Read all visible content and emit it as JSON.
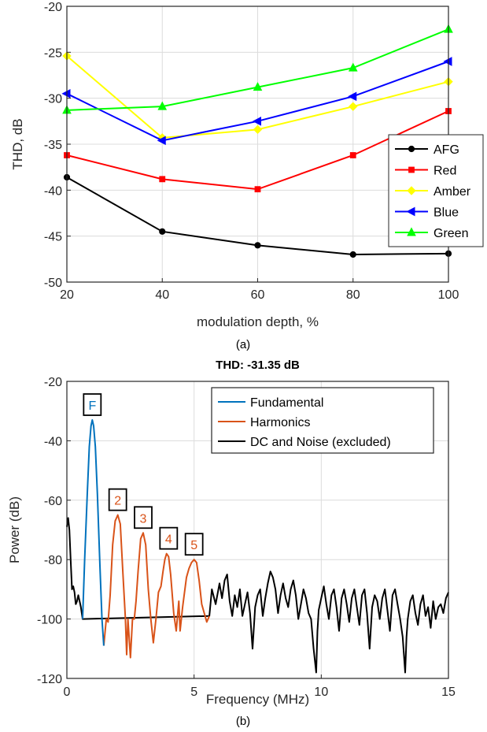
{
  "chart_data": [
    {
      "type": "line",
      "caption": "(a)",
      "xlabel": "modulation depth, %",
      "ylabel": "THD, dB",
      "xlim": [
        20,
        100
      ],
      "ylim": [
        -50,
        -20
      ],
      "xticks": [
        20,
        40,
        60,
        80,
        100
      ],
      "yticks": [
        -20,
        -25,
        -30,
        -35,
        -40,
        -45,
        -50
      ],
      "grid": true,
      "legend_position": "bottom-right",
      "x": [
        20,
        40,
        60,
        80,
        100
      ],
      "series": [
        {
          "name": "AFG",
          "color": "#000000",
          "marker": "circle",
          "values": [
            -38.6,
            -44.5,
            -46.0,
            -47.0,
            -46.9
          ]
        },
        {
          "name": "Red",
          "color": "#ff0000",
          "marker": "square",
          "values": [
            -36.2,
            -38.8,
            -39.9,
            -36.2,
            -31.4
          ]
        },
        {
          "name": "Amber",
          "color": "#ffff00",
          "marker": "diamond",
          "values": [
            -25.4,
            -34.3,
            -33.4,
            -30.9,
            -28.2
          ]
        },
        {
          "name": "Blue",
          "color": "#0000ff",
          "marker": "triangle-left",
          "values": [
            -29.5,
            -34.6,
            -32.5,
            -29.8,
            -26.0
          ]
        },
        {
          "name": "Green",
          "color": "#00ff00",
          "marker": "triangle-up",
          "values": [
            -31.3,
            -30.9,
            -28.8,
            -26.7,
            -22.5
          ]
        }
      ]
    },
    {
      "type": "line",
      "caption": "(b)",
      "title": "THD: -31.35 dB",
      "xlabel": "Frequency (MHz)",
      "ylabel": "Power (dB)",
      "xlim": [
        0,
        15
      ],
      "ylim": [
        -120,
        -20
      ],
      "xticks": [
        0,
        5,
        10,
        15
      ],
      "yticks": [
        -20,
        -40,
        -60,
        -80,
        -100,
        -120
      ],
      "grid": true,
      "legend_position": "top-right",
      "series": [
        {
          "name": "Fundamental",
          "color": "#0072bd",
          "x": [
            0.62,
            0.7,
            0.8,
            0.88,
            0.95,
            1.0,
            1.05,
            1.12,
            1.2,
            1.3,
            1.38,
            1.45
          ],
          "y": [
            -100,
            -80,
            -58,
            -42,
            -35,
            -33,
            -35,
            -42,
            -58,
            -82,
            -100,
            -109
          ]
        },
        {
          "name": "Harmonics",
          "color": "#d95319",
          "x": [
            1.45,
            1.55,
            1.62,
            1.7,
            1.8,
            1.9,
            2.0,
            2.1,
            2.2,
            2.3,
            2.35,
            2.4,
            2.5,
            2.58,
            2.65,
            2.72,
            2.8,
            2.9,
            3.0,
            3.1,
            3.2,
            3.3,
            3.4,
            3.5,
            3.6,
            3.7,
            3.78,
            3.85,
            3.92,
            4.0,
            4.08,
            4.2,
            4.3,
            4.4,
            4.45,
            4.55,
            4.7,
            4.8,
            4.9,
            5.0,
            5.1,
            5.2,
            5.3,
            5.4,
            5.5,
            5.6
          ],
          "y": [
            -109,
            -100,
            -101,
            -92,
            -75,
            -67,
            -65,
            -68,
            -84,
            -100,
            -112,
            -100,
            -113,
            -100,
            -100,
            -94,
            -84,
            -73,
            -71,
            -75,
            -90,
            -100,
            -108,
            -100,
            -91,
            -89,
            -84,
            -80,
            -78,
            -79,
            -85,
            -98,
            -104,
            -94,
            -104,
            -96,
            -86,
            -83,
            -81,
            -80,
            -81,
            -87,
            -95,
            -98,
            -101,
            -99
          ]
        },
        {
          "name": "DC and Noise (excluded)",
          "color": "#000000",
          "x": [
            0,
            0.05,
            0.1,
            0.15,
            0.2,
            0.25,
            0.3,
            0.35,
            0.4,
            0.45,
            0.5,
            0.55,
            0.62,
            5.6,
            5.7,
            5.85,
            6.0,
            6.1,
            6.2,
            6.3,
            6.4,
            6.5,
            6.6,
            6.7,
            6.8,
            6.9,
            7.0,
            7.1,
            7.2,
            7.3,
            7.4,
            7.5,
            7.6,
            7.7,
            7.8,
            7.9,
            8.0,
            8.1,
            8.2,
            8.3,
            8.4,
            8.5,
            8.6,
            8.7,
            8.8,
            8.9,
            9.0,
            9.1,
            9.2,
            9.3,
            9.4,
            9.5,
            9.6,
            9.7,
            9.8,
            9.85,
            9.9,
            10.0,
            10.1,
            10.2,
            10.3,
            10.4,
            10.5,
            10.6,
            10.7,
            10.8,
            10.9,
            11.0,
            11.1,
            11.2,
            11.3,
            11.4,
            11.5,
            11.6,
            11.7,
            11.8,
            11.9,
            12.0,
            12.1,
            12.2,
            12.3,
            12.4,
            12.5,
            12.6,
            12.7,
            12.8,
            12.9,
            13.0,
            13.1,
            13.2,
            13.3,
            13.35,
            13.4,
            13.5,
            13.6,
            13.7,
            13.8,
            13.9,
            14.0,
            14.1,
            14.2,
            14.3,
            14.4,
            14.5,
            14.6,
            14.7,
            14.8,
            14.9,
            15.0
          ],
          "y": [
            -69,
            -66,
            -70,
            -80,
            -90,
            -89,
            -91,
            -95,
            -94,
            -92,
            -94,
            -96,
            -100,
            -99,
            -90,
            -95,
            -88,
            -93,
            -87,
            -85,
            -94,
            -99,
            -92,
            -96,
            -90,
            -99,
            -95,
            -91,
            -98,
            -110,
            -96,
            -92,
            -90,
            -99,
            -93,
            -88,
            -84,
            -86,
            -90,
            -98,
            -92,
            -88,
            -93,
            -96,
            -90,
            -87,
            -92,
            -100,
            -95,
            -90,
            -93,
            -98,
            -100,
            -110,
            -118,
            -104,
            -97,
            -93,
            -89,
            -95,
            -100,
            -92,
            -90,
            -96,
            -104,
            -93,
            -90,
            -95,
            -101,
            -93,
            -90,
            -96,
            -102,
            -92,
            -90,
            -98,
            -110,
            -96,
            -92,
            -94,
            -100,
            -93,
            -90,
            -97,
            -104,
            -92,
            -90,
            -95,
            -100,
            -106,
            -118,
            -106,
            -100,
            -94,
            -92,
            -98,
            -102,
            -95,
            -92,
            -99,
            -96,
            -103,
            -94,
            -100,
            -96,
            -95,
            -98,
            -93,
            -91
          ]
        }
      ],
      "annotations": [
        {
          "text": "F",
          "x": 1.0,
          "y": -33,
          "color": "#0072bd"
        },
        {
          "text": "2",
          "x": 2.0,
          "y": -65,
          "color": "#d95319"
        },
        {
          "text": "3",
          "x": 3.0,
          "y": -71,
          "color": "#d95319"
        },
        {
          "text": "4",
          "x": 4.0,
          "y": -78,
          "color": "#d95319"
        },
        {
          "text": "5",
          "x": 5.0,
          "y": -80,
          "color": "#d95319"
        }
      ]
    }
  ]
}
